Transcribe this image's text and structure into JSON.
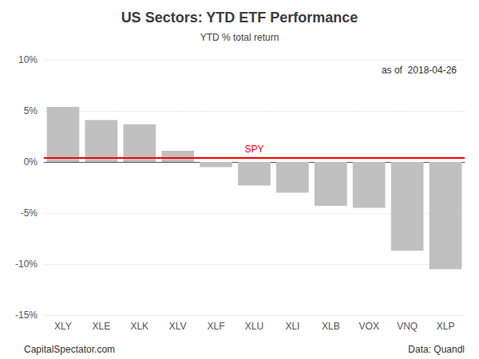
{
  "chart_data": {
    "type": "bar",
    "title": "US Sectors: YTD ETF Performance",
    "subtitle": "YTD % total return",
    "categories": [
      "XLY",
      "XLE",
      "XLK",
      "XLV",
      "XLF",
      "XLU",
      "XLI",
      "XLB",
      "VOX",
      "VNQ",
      "XLP"
    ],
    "values": [
      5.4,
      4.1,
      3.7,
      1.1,
      -0.5,
      -2.3,
      -3.0,
      -4.3,
      -4.5,
      -8.7,
      -10.5
    ],
    "color": "#c0c0c0",
    "reference_lines": [
      {
        "label": "SPY",
        "value": 0.4,
        "color": "#ff0000"
      }
    ],
    "annotations": [
      "as of  2018-04-26",
      "CapitalSpectator.com",
      "Data: Quandl"
    ],
    "ylim": [
      -15,
      10
    ],
    "yticks": [
      {
        "value": -15,
        "label": "-15%"
      },
      {
        "value": -10,
        "label": "-10%"
      },
      {
        "value": -5,
        "label": "-5%"
      },
      {
        "value": 0,
        "label": "0%"
      },
      {
        "value": 5,
        "label": "5%"
      },
      {
        "value": 10,
        "label": "10%"
      }
    ],
    "grid": true
  }
}
